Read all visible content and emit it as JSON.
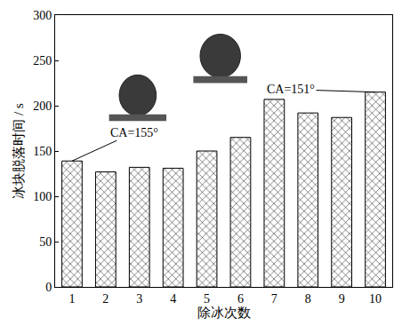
{
  "chart_data": {
    "type": "bar",
    "categories": [
      "1",
      "2",
      "3",
      "4",
      "5",
      "6",
      "7",
      "8",
      "9",
      "10"
    ],
    "values": [
      139,
      127,
      132,
      131,
      150,
      165,
      207,
      192,
      187,
      215
    ],
    "color": "#000000",
    "x_label": "除冰次数",
    "y_label": "冰块脱落时间 / s",
    "ylim": [
      0,
      300
    ],
    "yticks": [
      0,
      50,
      100,
      150,
      200,
      250,
      300
    ],
    "grid": false,
    "annotations": [
      {
        "text": "CA=155°",
        "category": "1"
      },
      {
        "text": "CA=151°",
        "category": "10"
      }
    ]
  }
}
